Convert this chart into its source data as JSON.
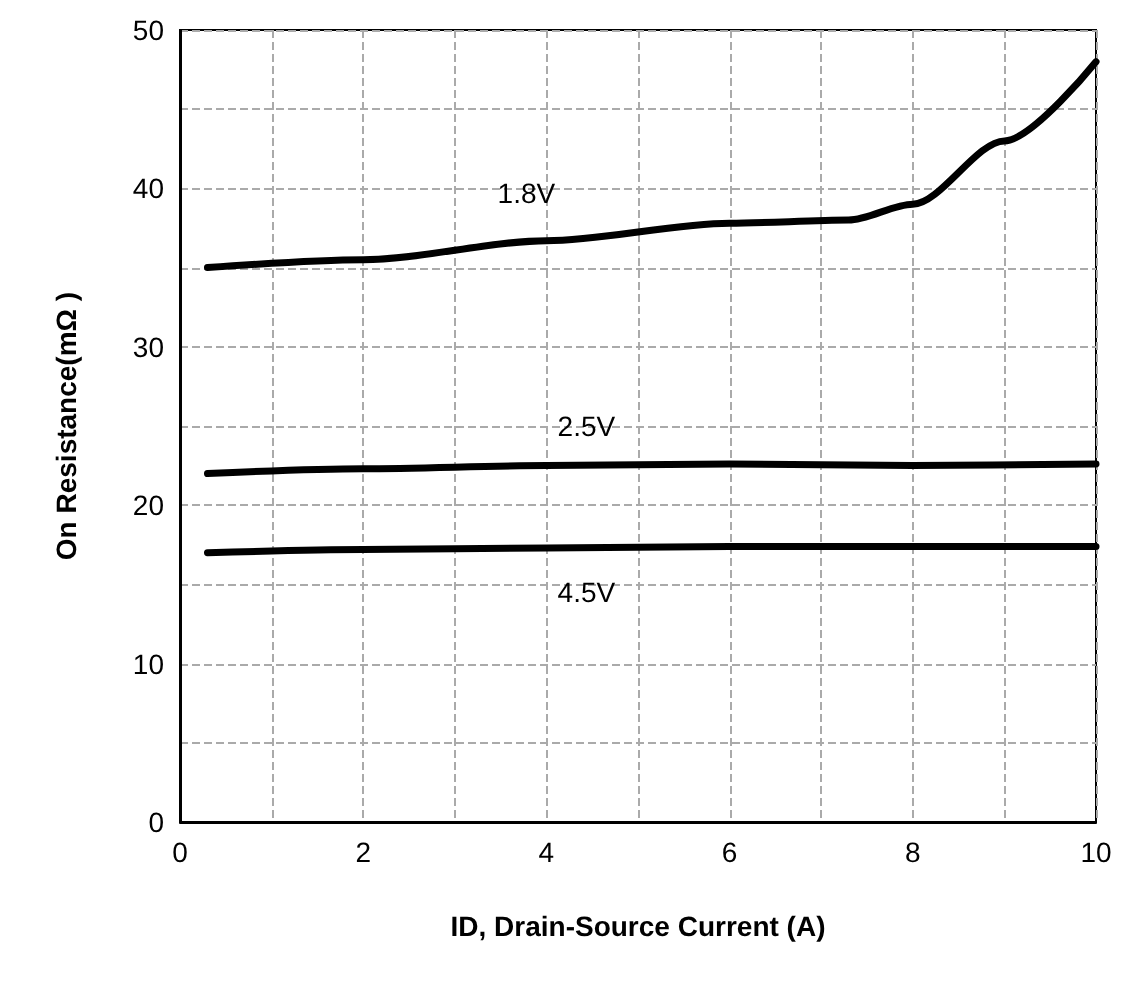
{
  "chart_data": {
    "type": "line",
    "xlabel": "ID, Drain-Source Current (A)",
    "ylabel": "On Resistance(mΩ )",
    "xlim": [
      0,
      10
    ],
    "ylim": [
      0,
      50
    ],
    "xticks": [
      0,
      {
        "value": 1,
        "label": null
      },
      2,
      {
        "value": 3,
        "label": null
      },
      4,
      {
        "value": 5,
        "label": null
      },
      6,
      {
        "value": 7,
        "label": null
      },
      8,
      {
        "value": 9,
        "label": null
      },
      10
    ],
    "yticks": [
      0,
      {
        "value": 5,
        "label": null
      },
      10,
      {
        "value": 15,
        "label": null
      },
      20,
      {
        "value": 25,
        "label": null
      },
      30,
      {
        "value": 35,
        "label": null
      },
      40,
      {
        "value": 45,
        "label": null
      },
      50
    ],
    "grid": true,
    "marker": "none",
    "line_style": "solid",
    "series": [
      {
        "name": "1.8V",
        "color": "#000000",
        "x": [
          0.3,
          2,
          4,
          6,
          7.3,
          8,
          9,
          10
        ],
        "values": [
          35,
          35.5,
          36.7,
          37.8,
          38,
          39,
          43,
          48
        ]
      },
      {
        "name": "2.5V",
        "color": "#000000",
        "x": [
          0.3,
          2,
          4,
          6,
          8,
          10
        ],
        "values": [
          22,
          22.3,
          22.5,
          22.6,
          22.5,
          22.6
        ]
      },
      {
        "name": "4.5V",
        "color": "#000000",
        "x": [
          0.3,
          2,
          4,
          6,
          8,
          10
        ],
        "values": [
          17,
          17.2,
          17.3,
          17.4,
          17.4,
          17.4
        ]
      }
    ]
  }
}
